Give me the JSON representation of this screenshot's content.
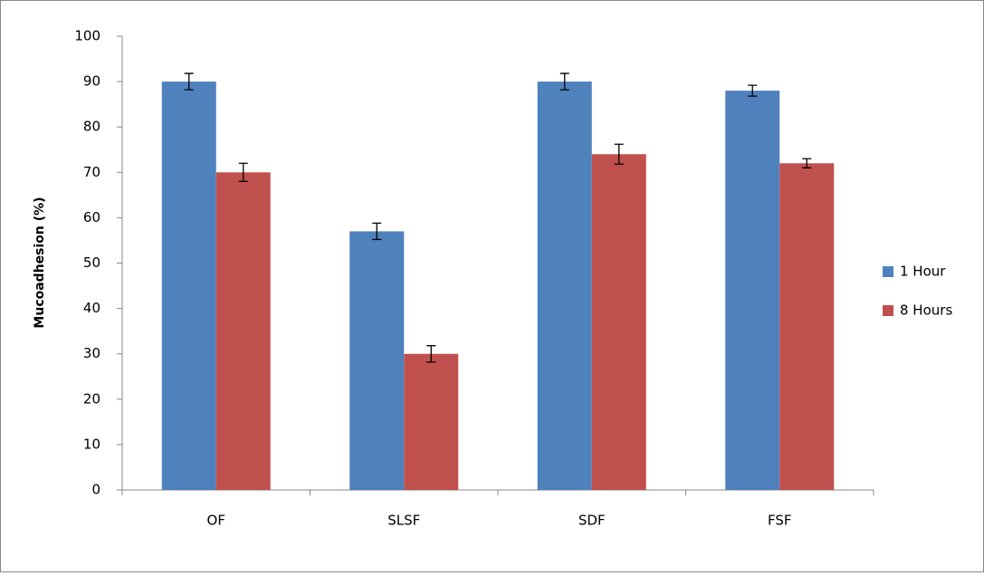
{
  "chart_data": {
    "type": "bar",
    "y_label": "Mucoadhesion  (%)",
    "categories": [
      "OF",
      "SLSF",
      "SDF",
      "FSF"
    ],
    "series": [
      {
        "name": "1 Hour",
        "color": "#4f81bd",
        "values": [
          90,
          57,
          90,
          88
        ],
        "errors": [
          1.8,
          1.8,
          1.8,
          1.2
        ]
      },
      {
        "name": "8 Hours",
        "color": "#c0504d",
        "values": [
          70,
          30,
          74,
          72
        ],
        "errors": [
          2,
          1.8,
          2.2,
          1
        ]
      }
    ],
    "ylim": [
      0,
      100
    ],
    "yticks": [
      0,
      10,
      20,
      30,
      40,
      50,
      60,
      70,
      80,
      90,
      100
    ],
    "legend": "right"
  }
}
